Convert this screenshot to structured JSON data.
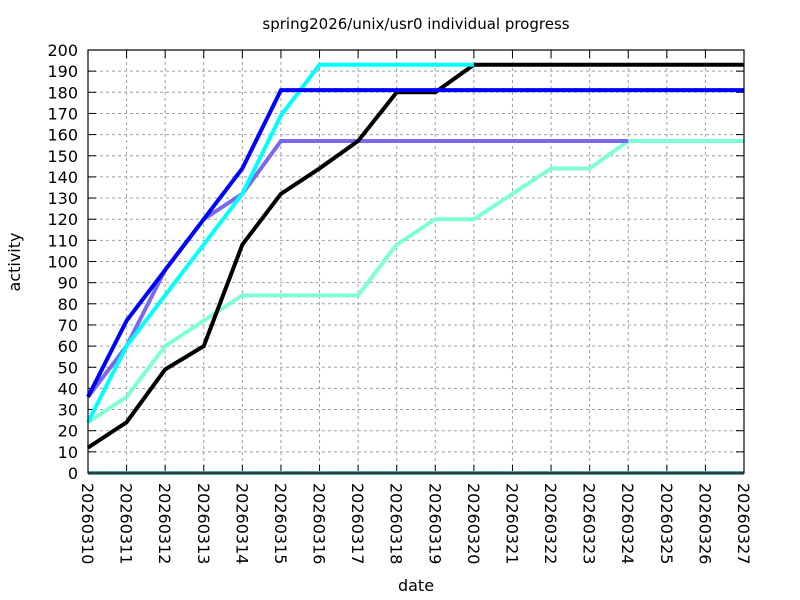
{
  "chart_data": {
    "type": "line",
    "title": "spring2026/unix/usr0 individual progress",
    "xlabel": "date",
    "ylabel": "activity",
    "ylim": [
      0,
      200
    ],
    "yticks": [
      0,
      10,
      20,
      30,
      40,
      50,
      60,
      70,
      80,
      90,
      100,
      110,
      120,
      130,
      140,
      150,
      160,
      170,
      180,
      190,
      200
    ],
    "grid": true,
    "legend": "none",
    "categories": [
      "20260310",
      "20260311",
      "20260312",
      "20260313",
      "20260314",
      "20260315",
      "20260316",
      "20260317",
      "20260318",
      "20260319",
      "20260320",
      "20260321",
      "20260322",
      "20260323",
      "20260324",
      "20260325",
      "20260326",
      "20260327"
    ],
    "series": [
      {
        "name": "series-cadetblue",
        "color": "#5f9ea0",
        "values": [
          0,
          0,
          0,
          0,
          0,
          0,
          0,
          0,
          0,
          0,
          0,
          0,
          0,
          0,
          0,
          0,
          0,
          0
        ]
      },
      {
        "name": "series-aquamarine",
        "color": "#7fffd4",
        "values": [
          24,
          36,
          60,
          72,
          84,
          84,
          84,
          84,
          108,
          120,
          120,
          132,
          144,
          144,
          157,
          157,
          157,
          157
        ]
      },
      {
        "name": "series-mediumslateblue",
        "color": "#7b68ee",
        "values": [
          36,
          60,
          96,
          120,
          132,
          157,
          157,
          157,
          157,
          157,
          157,
          157,
          157,
          157,
          157
        ]
      },
      {
        "name": "series-black",
        "color": "#000000",
        "values": [
          12,
          24,
          49,
          60,
          108,
          132,
          144,
          157,
          180,
          180,
          193,
          193,
          193,
          193,
          193,
          193,
          193,
          193
        ]
      },
      {
        "name": "series-cyan",
        "color": "#00ffff",
        "values": [
          24,
          60,
          84,
          108,
          132,
          169,
          193,
          193,
          193,
          193,
          193
        ]
      },
      {
        "name": "series-blue",
        "color": "#0000ff",
        "values": [
          36,
          72,
          96,
          120,
          144,
          181,
          181,
          181,
          181,
          181,
          181,
          181,
          181,
          181,
          181,
          181,
          181,
          181
        ]
      }
    ]
  }
}
